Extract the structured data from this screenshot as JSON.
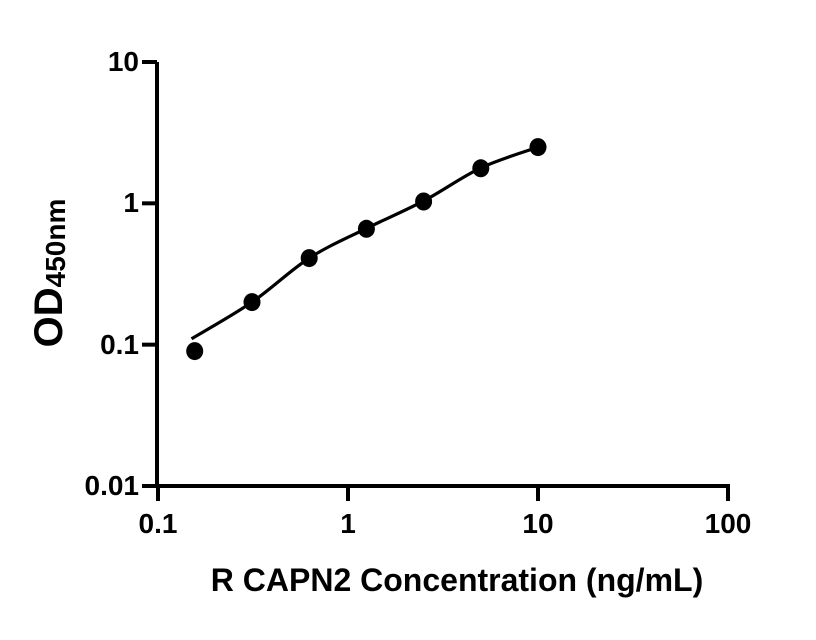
{
  "figure": {
    "background": "#ffffff",
    "foreground": "#000000"
  },
  "chart_data": {
    "type": "scatter",
    "title": "",
    "xlabel": "R CAPN2 Concentration (ng/mL)",
    "ylabel": "OD450nm",
    "ylabel_main": "OD",
    "ylabel_sub": "450nm",
    "xscale": "log",
    "yscale": "log",
    "xlim": [
      0.1,
      100
    ],
    "ylim": [
      0.01,
      10
    ],
    "grid": false,
    "legend": false,
    "xtick_values": [
      0.1,
      1,
      10,
      100
    ],
    "xtick_labels": [
      "0.1",
      "1",
      "10",
      "100"
    ],
    "ytick_values": [
      10,
      1,
      0.1,
      0.01
    ],
    "ytick_labels": [
      "10",
      "1",
      "0.1",
      "0.01"
    ],
    "marker_color": "#000000",
    "line_color": "#000000",
    "series": [
      {
        "name": "standard-curve-points",
        "marker": "circle",
        "points": [
          {
            "x": 0.156,
            "y": 0.09
          },
          {
            "x": 0.3125,
            "y": 0.2
          },
          {
            "x": 0.625,
            "y": 0.41
          },
          {
            "x": 1.25,
            "y": 0.66
          },
          {
            "x": 2.5,
            "y": 1.03
          },
          {
            "x": 5,
            "y": 1.77
          },
          {
            "x": 10,
            "y": 2.5
          }
        ]
      }
    ],
    "fit_curve": {
      "samples": [
        {
          "x": 0.15,
          "y": 0.11
        },
        {
          "x": 0.3125,
          "y": 0.2
        },
        {
          "x": 0.625,
          "y": 0.41
        },
        {
          "x": 1.25,
          "y": 0.665
        },
        {
          "x": 2.5,
          "y": 1.04
        },
        {
          "x": 5,
          "y": 1.78
        },
        {
          "x": 10,
          "y": 2.5
        }
      ]
    }
  }
}
